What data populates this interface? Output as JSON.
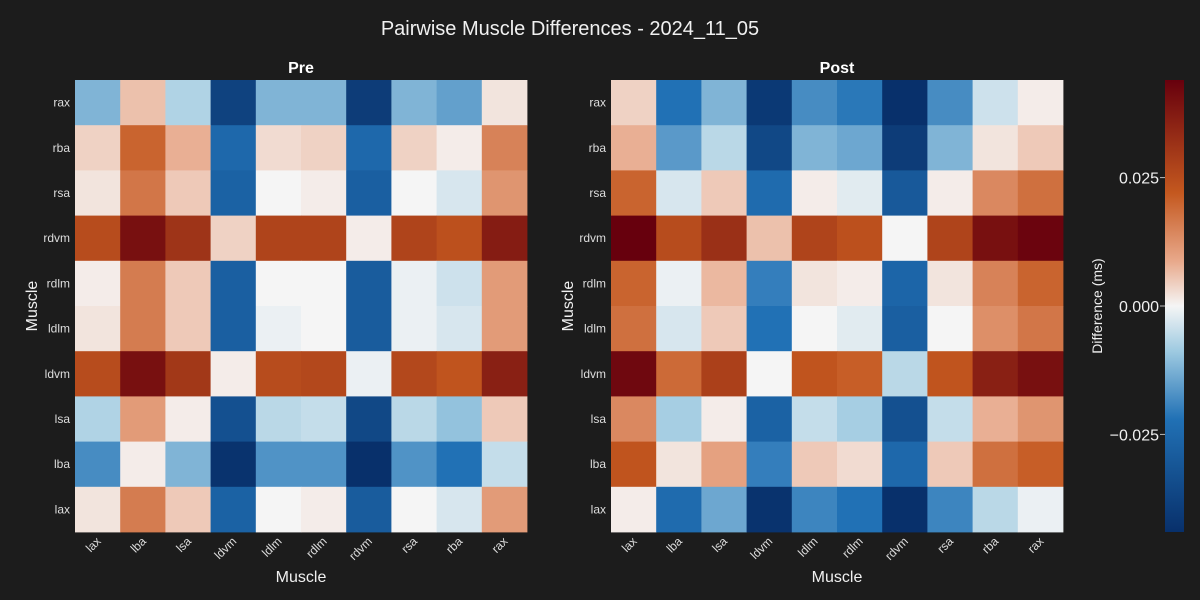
{
  "chart_data": {
    "type": "heatmap",
    "title": "Pairwise Muscle Differences - 2024_11_05",
    "x_categories": [
      "lax",
      "lba",
      "lsa",
      "ldvm",
      "ldlm",
      "rdlm",
      "rdvm",
      "rsa",
      "rba",
      "rax"
    ],
    "y_categories": [
      "rax",
      "rba",
      "rsa",
      "rdvm",
      "rdlm",
      "ldlm",
      "ldvm",
      "lsa",
      "lba",
      "lax"
    ],
    "xlabel": "Muscle",
    "ylabel": "Muscle",
    "colorbar": {
      "label": "Difference (ms)",
      "range": [
        -0.044,
        0.044
      ],
      "ticks": [
        -0.025,
        0,
        0.025
      ],
      "tick_labels": [
        "−0.025",
        "0.000",
        "0.025"
      ],
      "colors": {
        "low": "#08306b",
        "mid": "#f5f5f5",
        "high": "#67000d"
      }
    },
    "panels": [
      {
        "title": "Pre",
        "values": [
          [
            -0.012,
            0.006,
            -0.007,
            -0.038,
            -0.012,
            -0.012,
            -0.04,
            -0.012,
            -0.015,
            0.002
          ],
          [
            0.004,
            0.02,
            0.008,
            -0.025,
            0.003,
            0.004,
            -0.025,
            0.004,
            0.001,
            0.015
          ],
          [
            0.002,
            0.017,
            0.005,
            -0.027,
            0.0,
            0.001,
            -0.028,
            0.0,
            -0.003,
            0.012
          ],
          [
            0.025,
            0.04,
            0.031,
            0.004,
            0.027,
            0.027,
            0.001,
            0.027,
            0.024,
            0.037
          ],
          [
            0.001,
            0.016,
            0.005,
            -0.028,
            0.0,
            0.0,
            -0.029,
            -0.001,
            -0.004,
            0.011
          ],
          [
            0.002,
            0.016,
            0.005,
            -0.028,
            -0.001,
            0.0,
            -0.029,
            -0.001,
            -0.003,
            0.011
          ],
          [
            0.025,
            0.04,
            0.03,
            0.001,
            0.025,
            0.026,
            -0.001,
            0.026,
            0.023,
            0.036
          ],
          [
            -0.007,
            0.011,
            0.001,
            -0.033,
            -0.006,
            -0.005,
            -0.036,
            -0.006,
            -0.01,
            0.005
          ],
          [
            -0.018,
            0.001,
            -0.012,
            -0.043,
            -0.017,
            -0.017,
            -0.044,
            -0.017,
            -0.022,
            -0.005
          ],
          [
            0.002,
            0.016,
            0.005,
            -0.027,
            0.0,
            0.001,
            -0.029,
            0.0,
            -0.003,
            0.011
          ]
        ]
      },
      {
        "title": "Post",
        "values": [
          [
            0.004,
            -0.022,
            -0.012,
            -0.041,
            -0.018,
            -0.021,
            -0.044,
            -0.018,
            -0.004,
            0.001
          ],
          [
            0.008,
            -0.016,
            -0.006,
            -0.036,
            -0.012,
            -0.014,
            -0.04,
            -0.012,
            0.002,
            0.005
          ],
          [
            0.02,
            -0.003,
            0.005,
            -0.024,
            0.001,
            -0.002,
            -0.03,
            0.001,
            0.014,
            0.018
          ],
          [
            0.045,
            0.025,
            0.032,
            0.006,
            0.027,
            0.024,
            0.0,
            0.027,
            0.04,
            0.043
          ],
          [
            0.02,
            -0.001,
            0.007,
            -0.02,
            0.002,
            0.001,
            -0.026,
            0.002,
            0.015,
            0.02
          ],
          [
            0.018,
            -0.003,
            0.005,
            -0.022,
            0.0,
            -0.002,
            -0.028,
            0.0,
            0.013,
            0.017
          ],
          [
            0.042,
            0.019,
            0.028,
            0.0,
            0.023,
            0.021,
            -0.006,
            0.023,
            0.036,
            0.04
          ],
          [
            0.014,
            -0.008,
            0.001,
            -0.027,
            -0.005,
            -0.008,
            -0.033,
            -0.005,
            0.008,
            0.012
          ],
          [
            0.023,
            0.002,
            0.01,
            -0.02,
            0.005,
            0.003,
            -0.025,
            0.005,
            0.018,
            0.021
          ],
          [
            0.001,
            -0.024,
            -0.014,
            -0.043,
            -0.019,
            -0.022,
            -0.046,
            -0.019,
            -0.006,
            -0.001
          ]
        ]
      }
    ]
  }
}
